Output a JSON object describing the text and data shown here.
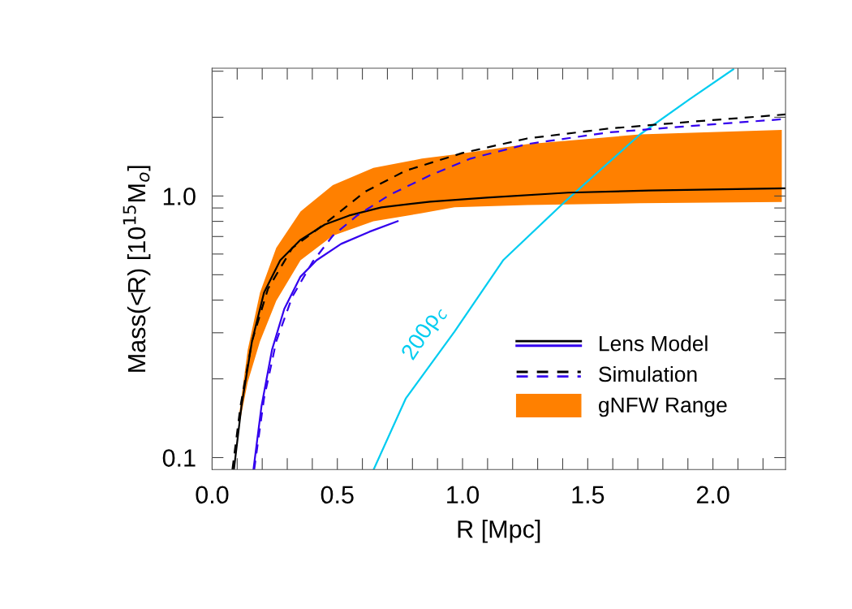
{
  "chart_data": {
    "type": "line",
    "xlabel": "R [Mpc]",
    "ylabel": "Mass(<R) [10$^{15}$M$_{o}$]",
    "log": "y",
    "grid": false,
    "legend": "bottom right",
    "xlim": [
      0,
      2.29
    ],
    "ylim": [
      0.09,
      3.08
    ],
    "xticks": [
      {
        "value": 0,
        "label": "0.0"
      },
      {
        "value": 0.1,
        "label": null
      },
      {
        "value": 0.2,
        "label": null
      },
      {
        "value": 0.3,
        "label": null
      },
      {
        "value": 0.4,
        "label": null
      },
      {
        "value": 0.5,
        "label": "0.5"
      },
      {
        "value": 0.6,
        "label": null
      },
      {
        "value": 0.7,
        "label": null
      },
      {
        "value": 0.8,
        "label": null
      },
      {
        "value": 0.9,
        "label": null
      },
      {
        "value": 1.0,
        "label": "1.0"
      },
      {
        "value": 1.1,
        "label": null
      },
      {
        "value": 1.2,
        "label": null
      },
      {
        "value": 1.3,
        "label": null
      },
      {
        "value": 1.4,
        "label": null
      },
      {
        "value": 1.5,
        "label": "1.5"
      },
      {
        "value": 1.6,
        "label": null
      },
      {
        "value": 1.7,
        "label": null
      },
      {
        "value": 1.8,
        "label": null
      },
      {
        "value": 1.9,
        "label": null
      },
      {
        "value": 2.0,
        "label": "2.0"
      },
      {
        "value": 2.1,
        "label": null
      },
      {
        "value": 2.2,
        "label": null
      }
    ],
    "yticks": [
      {
        "value": 0.1,
        "label": "0.1"
      },
      {
        "value": 0.2,
        "label": null
      },
      {
        "value": 0.3,
        "label": null
      },
      {
        "value": 0.4,
        "label": null
      },
      {
        "value": 0.5,
        "label": null
      },
      {
        "value": 0.6,
        "label": null
      },
      {
        "value": 0.7,
        "label": null
      },
      {
        "value": 0.8,
        "label": null
      },
      {
        "value": 0.9,
        "label": null
      },
      {
        "value": 1,
        "label": "1.0"
      },
      {
        "value": 2,
        "label": null
      },
      {
        "value": 3,
        "label": null
      }
    ],
    "annotations": [
      "200ρ$_{c}$"
    ],
    "series": [
      {
        "name": "gNFW Range",
        "type": "area",
        "color": "#ff8000",
        "x": [
          0.11,
          0.142,
          0.191,
          0.256,
          0.353,
          0.482,
          0.644,
          0.838,
          0.968,
          1.259,
          1.709,
          2.275
        ],
        "values": [
          null,
          null,
          null,
          null,
          null,
          null,
          null,
          null,
          null,
          null,
          null,
          null
        ],
        "lower": [
          0.136,
          0.194,
          0.278,
          0.397,
          0.568,
          0.705,
          0.801,
          0.86,
          0.905,
          0.924,
          0.938,
          0.948
        ],
        "upper": [
          0.151,
          0.258,
          0.427,
          0.633,
          0.873,
          1.1,
          1.28,
          1.39,
          1.44,
          1.58,
          1.72,
          1.79
        ]
      },
      {
        "name": null,
        "color": "#00ccf0",
        "line_style": "solid",
        "x": [
          0.645,
          0.773,
          0.968,
          1.162,
          1.405,
          1.709,
          1.906,
          2.081
        ],
        "values": [
          0.09,
          0.168,
          0.303,
          0.568,
          0.944,
          1.72,
          2.34,
          3.05
        ]
      },
      {
        "name": "Lens Model",
        "color": "#000000",
        "line_style": "solid",
        "x": [
          0.087,
          0.117,
          0.159,
          0.207,
          0.272,
          0.353,
          0.45,
          0.547,
          0.676,
          0.871,
          1.097,
          1.421,
          1.744,
          2.29
        ],
        "values": [
          0.09,
          0.157,
          0.278,
          0.427,
          0.568,
          0.68,
          0.778,
          0.842,
          0.905,
          0.951,
          0.986,
          1.03,
          1.05,
          1.07
        ]
      },
      {
        "name": null,
        "color": "#3300ee",
        "line_style": "solid",
        "x": [
          0.165,
          0.197,
          0.239,
          0.288,
          0.353,
          0.417,
          0.515,
          0.628,
          0.741
        ],
        "values": [
          0.09,
          0.157,
          0.258,
          0.37,
          0.492,
          0.568,
          0.656,
          0.73,
          0.801
        ]
      },
      {
        "name": "Simulation",
        "color": "#000000",
        "line_style": "dashed",
        "x": [
          0.081,
          0.113,
          0.159,
          0.223,
          0.32,
          0.45,
          0.612,
          0.773,
          1.0,
          1.259,
          1.583,
          1.906,
          2.29
        ],
        "values": [
          0.09,
          0.157,
          0.278,
          0.442,
          0.633,
          0.784,
          1.04,
          1.25,
          1.46,
          1.66,
          1.81,
          1.92,
          2.05
        ]
      },
      {
        "name": null,
        "color": "#3300ee",
        "line_style": "dashed",
        "x": [
          0.168,
          0.207,
          0.256,
          0.32,
          0.401,
          0.482,
          0.579,
          0.709,
          0.871,
          1.032,
          1.259,
          1.583,
          1.906,
          2.29
        ],
        "values": [
          0.09,
          0.168,
          0.278,
          0.412,
          0.56,
          0.705,
          0.842,
          1.01,
          1.2,
          1.39,
          1.58,
          1.75,
          1.85,
          1.97
        ]
      }
    ]
  }
}
